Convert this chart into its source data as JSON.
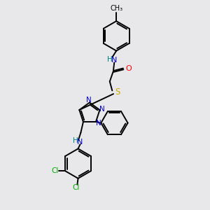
{
  "bg_color": "#e8e8ea",
  "atom_colors": {
    "C": "#000000",
    "N": "#0000cc",
    "O": "#ff0000",
    "S": "#ccaa00",
    "Cl": "#00aa00",
    "H": "#008080"
  },
  "lw": 1.4,
  "ring_r": 0.72,
  "tri_r": 0.52
}
